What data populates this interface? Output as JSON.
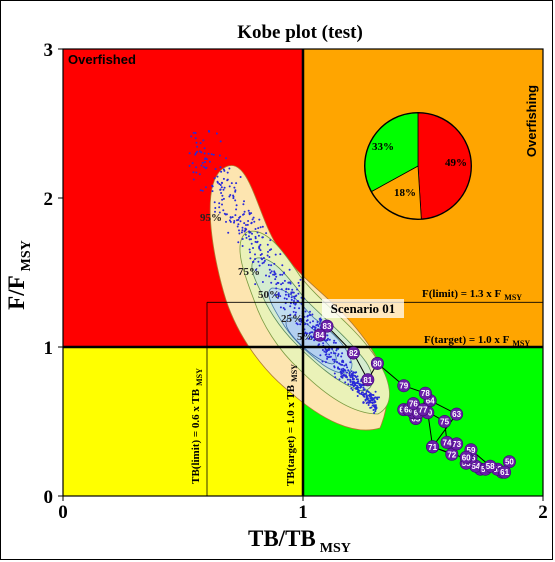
{
  "chart_data": {
    "type": "scatter",
    "title": "Kobe plot (test)",
    "xlabel": "TB/TB",
    "xlabel_sub": "MSY",
    "ylabel": "F/F",
    "ylabel_sub": "MSY",
    "xlim": [
      0,
      2
    ],
    "ylim": [
      0,
      3
    ],
    "xticks": [
      "0",
      "1",
      "2"
    ],
    "yticks": [
      "0",
      "1",
      "2",
      "3"
    ],
    "quadrant_labels": {
      "top_left": "Overfished",
      "top_right": "Overfishing"
    },
    "colors": {
      "overfished": "#ff0000",
      "overfishing": "#ffa500",
      "healthy": "#00ff00",
      "caution": "#ffff00"
    },
    "reference_lines": {
      "f_limit": {
        "value": 1.3,
        "label": "F(limit) = 1.3 x F",
        "sub": "MSY"
      },
      "f_target": {
        "value": 1.0,
        "label": "F(target) = 1.0 x F",
        "sub": "MSY"
      },
      "tb_limit": {
        "value": 0.6,
        "label": "TB(limit) = 0.6 x TB",
        "sub": "MSY"
      },
      "tb_target": {
        "value": 1.0,
        "label": "TB(target) = 1.0 x TB",
        "sub": "MSY"
      }
    },
    "contour_labels": [
      "95%",
      "75%",
      "50%",
      "25%",
      "5%"
    ],
    "scenario_label": "Scenario 01",
    "pie": [
      {
        "label": "49%",
        "value": 49,
        "color": "#ff0000"
      },
      {
        "label": "18%",
        "value": 18,
        "color": "#ffa500"
      },
      {
        "label": "33%",
        "value": 33,
        "color": "#00ff00"
      }
    ],
    "trajectory": [
      {
        "year": "50",
        "x": 1.86,
        "y": 0.23
      },
      {
        "year": "51",
        "x": 1.83,
        "y": 0.16
      },
      {
        "year": "52",
        "x": 1.81,
        "y": 0.18
      },
      {
        "year": "53",
        "x": 1.74,
        "y": 0.18
      },
      {
        "year": "54",
        "x": 1.72,
        "y": 0.2
      },
      {
        "year": "55",
        "x": 1.68,
        "y": 0.22
      },
      {
        "year": "56",
        "x": 1.7,
        "y": 0.26
      },
      {
        "year": "57",
        "x": 1.76,
        "y": 0.18
      },
      {
        "year": "58",
        "x": 1.78,
        "y": 0.2
      },
      {
        "year": "59",
        "x": 1.7,
        "y": 0.31
      },
      {
        "year": "60",
        "x": 1.68,
        "y": 0.26
      },
      {
        "year": "61",
        "x": 1.84,
        "y": 0.16
      },
      {
        "year": "62",
        "x": 1.54,
        "y": 0.33
      },
      {
        "year": "63",
        "x": 1.64,
        "y": 0.55
      },
      {
        "year": "64",
        "x": 1.53,
        "y": 0.64
      },
      {
        "year": "65",
        "x": 1.47,
        "y": 0.52
      },
      {
        "year": "66",
        "x": 1.42,
        "y": 0.58
      },
      {
        "year": "67",
        "x": 1.46,
        "y": 0.56
      },
      {
        "year": "68",
        "x": 1.44,
        "y": 0.58
      },
      {
        "year": "69",
        "x": 1.48,
        "y": 0.56
      },
      {
        "year": "70",
        "x": 1.52,
        "y": 0.56
      },
      {
        "year": "71",
        "x": 1.54,
        "y": 0.33
      },
      {
        "year": "72",
        "x": 1.62,
        "y": 0.28
      },
      {
        "year": "73",
        "x": 1.64,
        "y": 0.35
      },
      {
        "year": "74",
        "x": 1.6,
        "y": 0.36
      },
      {
        "year": "75",
        "x": 1.59,
        "y": 0.5
      },
      {
        "year": "76",
        "x": 1.46,
        "y": 0.62
      },
      {
        "year": "77",
        "x": 1.5,
        "y": 0.58
      },
      {
        "year": "78",
        "x": 1.51,
        "y": 0.69
      },
      {
        "year": "79",
        "x": 1.42,
        "y": 0.74
      },
      {
        "year": "80",
        "x": 1.31,
        "y": 0.89
      },
      {
        "year": "81",
        "x": 1.27,
        "y": 0.78
      },
      {
        "year": "82",
        "x": 1.21,
        "y": 0.96
      },
      {
        "year": "83",
        "x": 1.1,
        "y": 1.14
      },
      {
        "year": "84",
        "x": 1.07,
        "y": 1.08
      }
    ]
  }
}
